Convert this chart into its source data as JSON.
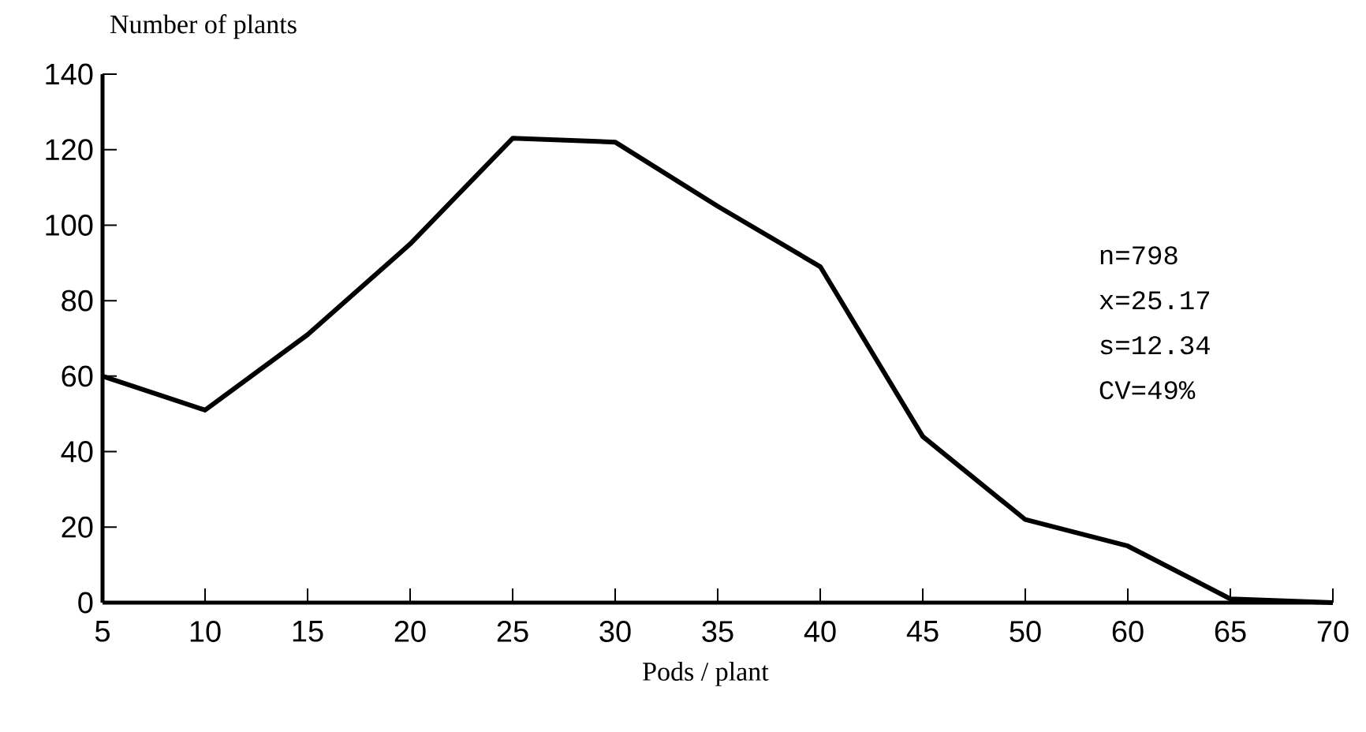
{
  "chart_data": {
    "type": "line",
    "xlabel": "Pods /  plant",
    "ylabel": "Number of plants",
    "categories": [
      "5",
      "10",
      "15",
      "20",
      "25",
      "30",
      "35",
      "40",
      "45",
      "50",
      "60",
      "65",
      "70"
    ],
    "values": [
      60,
      51,
      71,
      95,
      123,
      122,
      105,
      89,
      44,
      22,
      15,
      1,
      0
    ],
    "color": "#000000",
    "ylim": [
      0,
      140
    ],
    "yticks": [
      0,
      20,
      40,
      60,
      80,
      100,
      120,
      140
    ],
    "annotations": [
      "n=798",
      "x=25.17",
      "s=12.34",
      "CV=49%"
    ]
  }
}
